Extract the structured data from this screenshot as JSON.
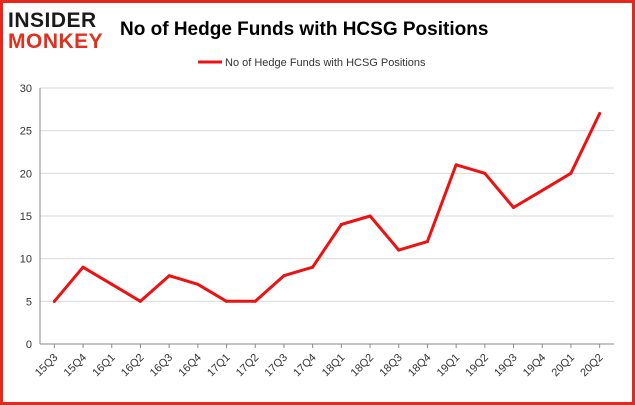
{
  "brand": {
    "logo_top": "INSIDER",
    "logo_bottom": "MONKEY"
  },
  "chart_data": {
    "type": "line",
    "title": "No of Hedge Funds with HCSG Positions",
    "xlabel": "",
    "ylabel": "",
    "categories": [
      "15Q3",
      "15Q4",
      "16Q1",
      "16Q2",
      "16Q3",
      "16Q4",
      "17Q1",
      "17Q2",
      "17Q3",
      "17Q4",
      "18Q1",
      "18Q2",
      "18Q3",
      "18Q4",
      "19Q1",
      "19Q2",
      "19Q3",
      "19Q4",
      "20Q1",
      "20Q2"
    ],
    "series": [
      {
        "name": "No of Hedge Funds with HCSG Positions",
        "color": "#ee1111",
        "values": [
          5,
          9,
          7,
          5,
          8,
          7,
          5,
          5,
          8,
          9,
          14,
          15,
          11,
          12,
          21,
          20,
          16,
          18,
          20,
          27
        ]
      }
    ],
    "ylim": [
      0,
      30
    ],
    "yticks": [
      0,
      5,
      10,
      15,
      20,
      25,
      30
    ],
    "grid": "horizontal",
    "legend": "top-center"
  },
  "colors": {
    "frame": "#e8261c",
    "grid": "#d9d9d9",
    "axis": "#888888",
    "logo_accent": "#e0301e"
  }
}
